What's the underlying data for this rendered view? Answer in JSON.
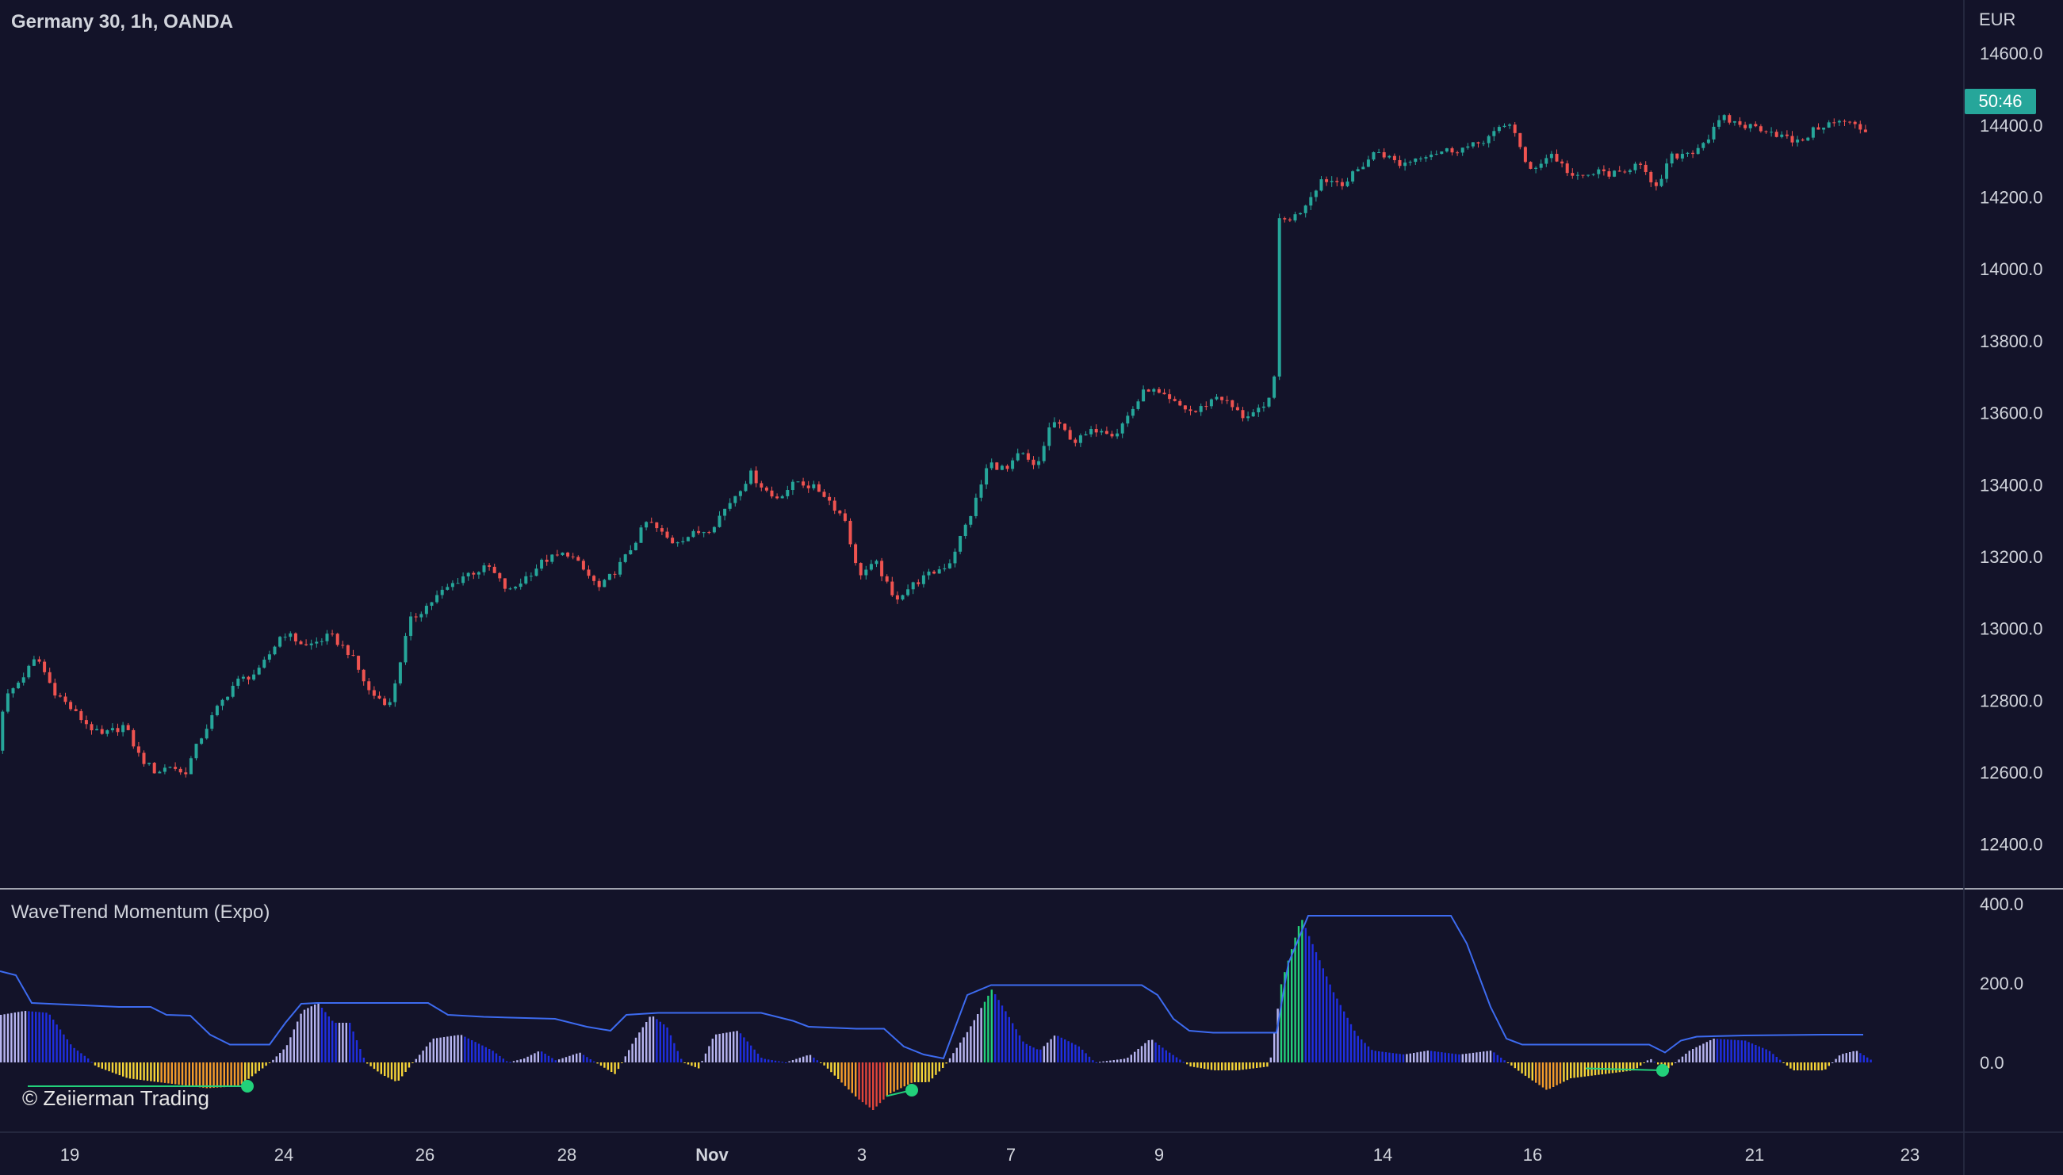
{
  "header": {
    "symbol_title": "Germany 30, 1h, OANDA",
    "indicator_title": "WaveTrend Momentum (Expo)",
    "watermark": "© Zeiierman Trading",
    "currency": "EUR",
    "countdown": "50:46"
  },
  "colors": {
    "background": "#131329",
    "up_candle": "#26a69a",
    "down_candle": "#ef5350",
    "countdown_bg": "#26a69a",
    "axis_text": "#d1d4dc",
    "wave_blue": "#1f2ee0",
    "wave_lavender": "#b7b5f0",
    "wave_green": "#22d07a",
    "wave_yellow": "#f5d437",
    "wave_orange": "#f39c2b",
    "wave_red": "#e0453a",
    "signal_line": "#3d6bf0",
    "divergence_dot": "#22d07a"
  },
  "chart_data": [
    {
      "type": "candlestick",
      "title": "Germany 30, 1h, OANDA",
      "yunit": "EUR",
      "ylim": [
        12300,
        14660
      ],
      "yticks": [
        "14600.0",
        "14400.0",
        "14200.0",
        "14000.0",
        "13800.0",
        "13600.0",
        "13400.0",
        "13200.0",
        "13000.0",
        "12800.0",
        "12600.0",
        "12400.0"
      ],
      "xticks": [
        "19",
        "24",
        "26",
        "28",
        "Nov",
        "3",
        "7",
        "9",
        "14",
        "16",
        "21",
        "23"
      ],
      "last_price": 14410,
      "price_path": [
        [
          0,
          12660
        ],
        [
          8,
          12800
        ],
        [
          30,
          12860
        ],
        [
          50,
          12920
        ],
        [
          70,
          12830
        ],
        [
          100,
          12760
        ],
        [
          130,
          12700
        ],
        [
          160,
          12730
        ],
        [
          180,
          12640
        ],
        [
          200,
          12600
        ],
        [
          220,
          12620
        ],
        [
          235,
          12590
        ],
        [
          255,
          12690
        ],
        [
          275,
          12770
        ],
        [
          300,
          12850
        ],
        [
          330,
          12880
        ],
        [
          360,
          12990
        ],
        [
          390,
          12950
        ],
        [
          420,
          12980
        ],
        [
          445,
          12930
        ],
        [
          470,
          12820
        ],
        [
          495,
          12790
        ],
        [
          520,
          13020
        ],
        [
          560,
          13100
        ],
        [
          590,
          13150
        ],
        [
          620,
          13170
        ],
        [
          645,
          13100
        ],
        [
          690,
          13190
        ],
        [
          720,
          13210
        ],
        [
          760,
          13110
        ],
        [
          790,
          13190
        ],
        [
          820,
          13300
        ],
        [
          850,
          13240
        ],
        [
          900,
          13280
        ],
        [
          950,
          13430
        ],
        [
          980,
          13360
        ],
        [
          1010,
          13410
        ],
        [
          1040,
          13380
        ],
        [
          1070,
          13300
        ],
        [
          1085,
          13150
        ],
        [
          1110,
          13180
        ],
        [
          1130,
          13080
        ],
        [
          1160,
          13130
        ],
        [
          1200,
          13180
        ],
        [
          1230,
          13330
        ],
        [
          1250,
          13460
        ],
        [
          1275,
          13440
        ],
        [
          1290,
          13490
        ],
        [
          1310,
          13440
        ],
        [
          1330,
          13580
        ],
        [
          1360,
          13520
        ],
        [
          1390,
          13560
        ],
        [
          1410,
          13540
        ],
        [
          1450,
          13670
        ],
        [
          1480,
          13630
        ],
        [
          1510,
          13600
        ],
        [
          1540,
          13650
        ],
        [
          1570,
          13590
        ],
        [
          1600,
          13610
        ],
        [
          1610,
          13680
        ],
        [
          1616,
          14130
        ],
        [
          1640,
          14150
        ],
        [
          1670,
          14250
        ],
        [
          1700,
          14240
        ],
        [
          1740,
          14330
        ],
        [
          1770,
          14290
        ],
        [
          1800,
          14320
        ],
        [
          1830,
          14330
        ],
        [
          1860,
          14340
        ],
        [
          1890,
          14380
        ],
        [
          1910,
          14410
        ],
        [
          1930,
          14270
        ],
        [
          1960,
          14320
        ],
        [
          1990,
          14250
        ],
        [
          2020,
          14270
        ],
        [
          2050,
          14260
        ],
        [
          2070,
          14310
        ],
        [
          2090,
          14210
        ],
        [
          2110,
          14310
        ],
        [
          2140,
          14330
        ],
        [
          2160,
          14370
        ],
        [
          2175,
          14420
        ],
        [
          2200,
          14400
        ],
        [
          2230,
          14390
        ],
        [
          2250,
          14370
        ],
        [
          2270,
          14350
        ],
        [
          2300,
          14400
        ],
        [
          2330,
          14410
        ],
        [
          2350,
          14390
        ],
        [
          2360,
          14380
        ]
      ]
    },
    {
      "type": "histogram",
      "title": "WaveTrend Momentum (Expo)",
      "ylim": [
        -180,
        420
      ],
      "yticks": [
        "400.0",
        "200.0",
        "0.0"
      ],
      "wave_path": [
        [
          0,
          120
        ],
        [
          30,
          130
        ],
        [
          60,
          125
        ],
        [
          90,
          40
        ],
        [
          110,
          10
        ],
        [
          120,
          -10
        ],
        [
          160,
          -40
        ],
        [
          200,
          -50
        ],
        [
          260,
          -65
        ],
        [
          300,
          -60
        ],
        [
          320,
          -30
        ],
        [
          340,
          0
        ],
        [
          360,
          40
        ],
        [
          380,
          130
        ],
        [
          400,
          150
        ],
        [
          420,
          100
        ],
        [
          440,
          100
        ],
        [
          460,
          0
        ],
        [
          480,
          -30
        ],
        [
          500,
          -50
        ],
        [
          520,
          0
        ],
        [
          545,
          60
        ],
        [
          580,
          70
        ],
        [
          620,
          30
        ],
        [
          640,
          0
        ],
        [
          660,
          10
        ],
        [
          680,
          30
        ],
        [
          700,
          5
        ],
        [
          730,
          25
        ],
        [
          750,
          0
        ],
        [
          775,
          -30
        ],
        [
          800,
          60
        ],
        [
          820,
          120
        ],
        [
          840,
          90
        ],
        [
          860,
          0
        ],
        [
          880,
          -15
        ],
        [
          900,
          70
        ],
        [
          930,
          80
        ],
        [
          960,
          10
        ],
        [
          990,
          0
        ],
        [
          1020,
          20
        ],
        [
          1040,
          -10
        ],
        [
          1080,
          -90
        ],
        [
          1100,
          -120
        ],
        [
          1120,
          -80
        ],
        [
          1150,
          -50
        ],
        [
          1170,
          -50
        ],
        [
          1190,
          -10
        ],
        [
          1220,
          80
        ],
        [
          1250,
          185
        ],
        [
          1270,
          120
        ],
        [
          1290,
          50
        ],
        [
          1310,
          30
        ],
        [
          1330,
          70
        ],
        [
          1360,
          40
        ],
        [
          1380,
          0
        ],
        [
          1420,
          10
        ],
        [
          1450,
          60
        ],
        [
          1470,
          30
        ],
        [
          1500,
          -10
        ],
        [
          1530,
          -20
        ],
        [
          1560,
          -20
        ],
        [
          1600,
          -10
        ],
        [
          1615,
          200
        ],
        [
          1640,
          365
        ],
        [
          1680,
          180
        ],
        [
          1710,
          70
        ],
        [
          1730,
          30
        ],
        [
          1770,
          20
        ],
        [
          1800,
          30
        ],
        [
          1840,
          20
        ],
        [
          1880,
          30
        ],
        [
          1920,
          -30
        ],
        [
          1950,
          -70
        ],
        [
          1980,
          -40
        ],
        [
          2020,
          -30
        ],
        [
          2060,
          -20
        ],
        [
          2080,
          10
        ],
        [
          2100,
          -20
        ],
        [
          2130,
          30
        ],
        [
          2160,
          60
        ],
        [
          2200,
          55
        ],
        [
          2230,
          30
        ],
        [
          2260,
          -20
        ],
        [
          2300,
          -20
        ],
        [
          2320,
          20
        ],
        [
          2340,
          30
        ],
        [
          2360,
          5
        ]
      ],
      "signal_path": [
        [
          0,
          230
        ],
        [
          20,
          220
        ],
        [
          40,
          150
        ],
        [
          150,
          140
        ],
        [
          190,
          140
        ],
        [
          210,
          120
        ],
        [
          240,
          118
        ],
        [
          265,
          70
        ],
        [
          290,
          45
        ],
        [
          340,
          45
        ],
        [
          360,
          100
        ],
        [
          380,
          148
        ],
        [
          400,
          150
        ],
        [
          540,
          150
        ],
        [
          565,
          120
        ],
        [
          610,
          115
        ],
        [
          700,
          110
        ],
        [
          740,
          90
        ],
        [
          770,
          80
        ],
        [
          790,
          120
        ],
        [
          830,
          125
        ],
        [
          960,
          125
        ],
        [
          1000,
          105
        ],
        [
          1020,
          90
        ],
        [
          1080,
          85
        ],
        [
          1115,
          85
        ],
        [
          1140,
          40
        ],
        [
          1165,
          20
        ],
        [
          1190,
          10
        ],
        [
          1220,
          170
        ],
        [
          1250,
          195
        ],
        [
          1440,
          195
        ],
        [
          1460,
          170
        ],
        [
          1480,
          110
        ],
        [
          1500,
          80
        ],
        [
          1530,
          75
        ],
        [
          1610,
          75
        ],
        [
          1625,
          250
        ],
        [
          1650,
          370
        ],
        [
          1830,
          370
        ],
        [
          1850,
          300
        ],
        [
          1880,
          140
        ],
        [
          1900,
          60
        ],
        [
          1920,
          45
        ],
        [
          2080,
          45
        ],
        [
          2100,
          25
        ],
        [
          2120,
          55
        ],
        [
          2140,
          65
        ],
        [
          2200,
          68
        ],
        [
          2300,
          70
        ],
        [
          2350,
          70
        ]
      ],
      "divergences": [
        {
          "from": [
            35,
            -60
          ],
          "to": [
            312,
            -60
          ]
        },
        {
          "from": [
            1118,
            -85
          ],
          "to": [
            1150,
            -70
          ]
        },
        {
          "from": [
            2000,
            -15
          ],
          "to": [
            2097,
            -20
          ]
        }
      ]
    }
  ]
}
